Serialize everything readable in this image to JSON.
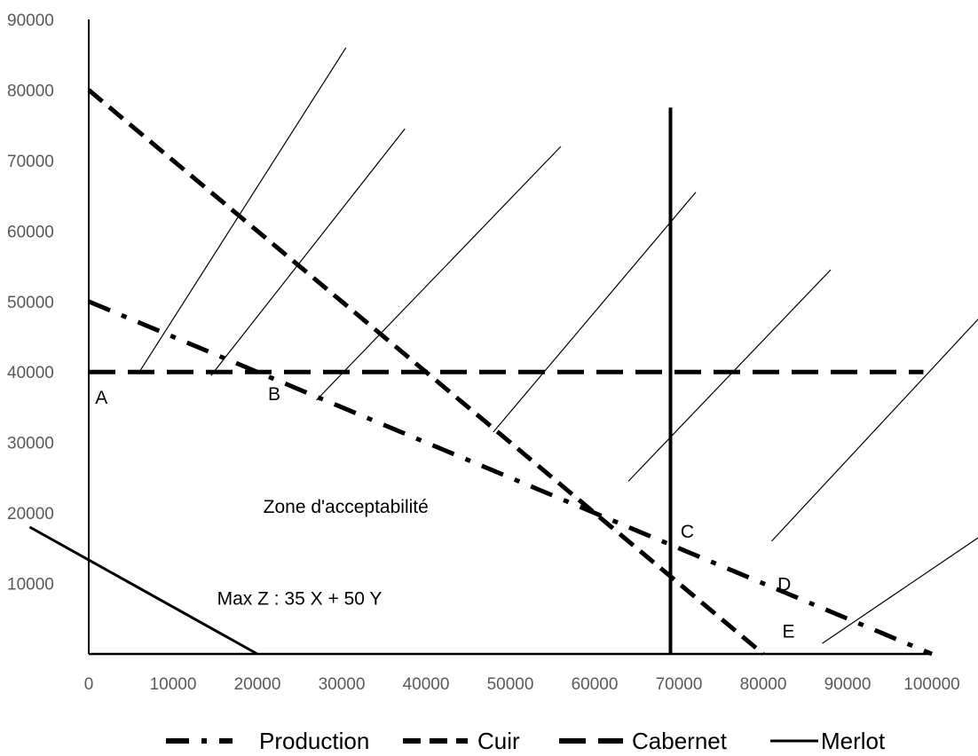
{
  "chart_data": {
    "type": "line",
    "title": "",
    "xlabel": "",
    "ylabel": "",
    "xlim": [
      0,
      100000
    ],
    "ylim": [
      0,
      90000
    ],
    "x_ticks": [
      0,
      10000,
      20000,
      30000,
      40000,
      50000,
      60000,
      70000,
      80000,
      90000,
      100000
    ],
    "x_tick_labels": [
      "0",
      "10000",
      "20000",
      "30000",
      "40000",
      "50000",
      "60000",
      "70000",
      "80000",
      "90000",
      "100000"
    ],
    "y_ticks": [
      10000,
      20000,
      30000,
      40000,
      50000,
      60000,
      70000,
      80000,
      90000
    ],
    "y_tick_labels": [
      "10000",
      "20000",
      "30000",
      "40000",
      "50000",
      "60000",
      "70000",
      "80000",
      "90000"
    ],
    "grid": false,
    "legend_position": "bottom",
    "series": [
      {
        "name": "Production",
        "style": "dash-dot",
        "x": [
          0,
          100000
        ],
        "y": [
          50000,
          0
        ]
      },
      {
        "name": "Cuir",
        "style": "dashed",
        "x": [
          0,
          80000
        ],
        "y": [
          80000,
          0
        ]
      },
      {
        "name": "Cabernet",
        "style": "long-dash",
        "x": [
          0,
          99000
        ],
        "y": [
          40000,
          40000
        ]
      },
      {
        "name": "Merlot",
        "style": "solid",
        "x": [
          69000,
          69000
        ],
        "y": [
          0,
          77500
        ]
      }
    ],
    "objective_line": {
      "x": [
        -7000,
        20000
      ],
      "y": [
        18000,
        0
      ]
    },
    "hatch_lines": [
      {
        "x": [
          6000,
          30500
        ],
        "y": [
          40000,
          86000
        ]
      },
      {
        "x": [
          14500,
          37500
        ],
        "y": [
          39500,
          74500
        ]
      },
      {
        "x": [
          27000,
          56000
        ],
        "y": [
          36000,
          72000
        ]
      },
      {
        "x": [
          48000,
          72000
        ],
        "y": [
          31500,
          65500
        ]
      },
      {
        "x": [
          64000,
          88000
        ],
        "y": [
          24500,
          54500
        ]
      },
      {
        "x": [
          81000,
          109000
        ],
        "y": [
          16000,
          52000
        ]
      },
      {
        "x": [
          87000,
          116000
        ],
        "y": [
          1500,
          25000
        ]
      }
    ],
    "annotations": [
      {
        "text": "A",
        "x": 1500,
        "y": 35500
      },
      {
        "text": "B",
        "x": 22000,
        "y": 36000
      },
      {
        "text": "C",
        "x": 71000,
        "y": 16500
      },
      {
        "text": "D",
        "x": 82500,
        "y": 9000
      },
      {
        "text": "E",
        "x": 83000,
        "y": 2300
      },
      {
        "text": "Zone d'acceptabilité",
        "x": 30500,
        "y": 20000
      },
      {
        "text": "Max Z : 35 X + 50 Y",
        "x": 25000,
        "y": 7000
      }
    ]
  },
  "legend": [
    {
      "label": "Production",
      "style": "dash-dot"
    },
    {
      "label": "Cuir",
      "style": "dashed"
    },
    {
      "label": "Cabernet",
      "style": "long-dash"
    },
    {
      "label": "Merlot",
      "style": "solid"
    }
  ]
}
